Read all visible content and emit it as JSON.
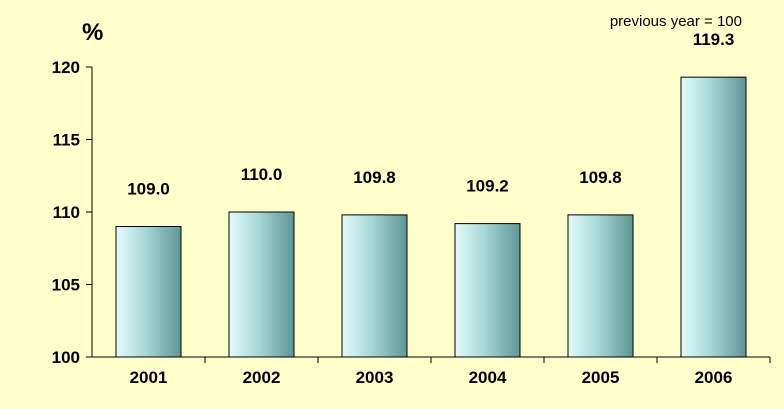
{
  "chart_data": {
    "type": "bar",
    "ylabel": "%",
    "note": "previous year = 100",
    "categories": [
      "2001",
      "2002",
      "2003",
      "2004",
      "2005",
      "2006"
    ],
    "values": [
      109.0,
      110.0,
      109.8,
      109.2,
      109.8,
      119.3
    ],
    "value_labels": [
      "109.0",
      "110.0",
      "109.8",
      "109.2",
      "109.8",
      "119.3"
    ],
    "ylim": [
      100,
      120
    ],
    "yticks": [
      "100",
      "105",
      "110",
      "115",
      "120"
    ],
    "grid": false,
    "legend": "none",
    "colors": {
      "background": "#FFFFCC",
      "bar_light": "#E6FAFA",
      "bar_mid": "#A8D8D8",
      "bar_dark": "#5E9696",
      "bar_border": "#000000"
    }
  }
}
